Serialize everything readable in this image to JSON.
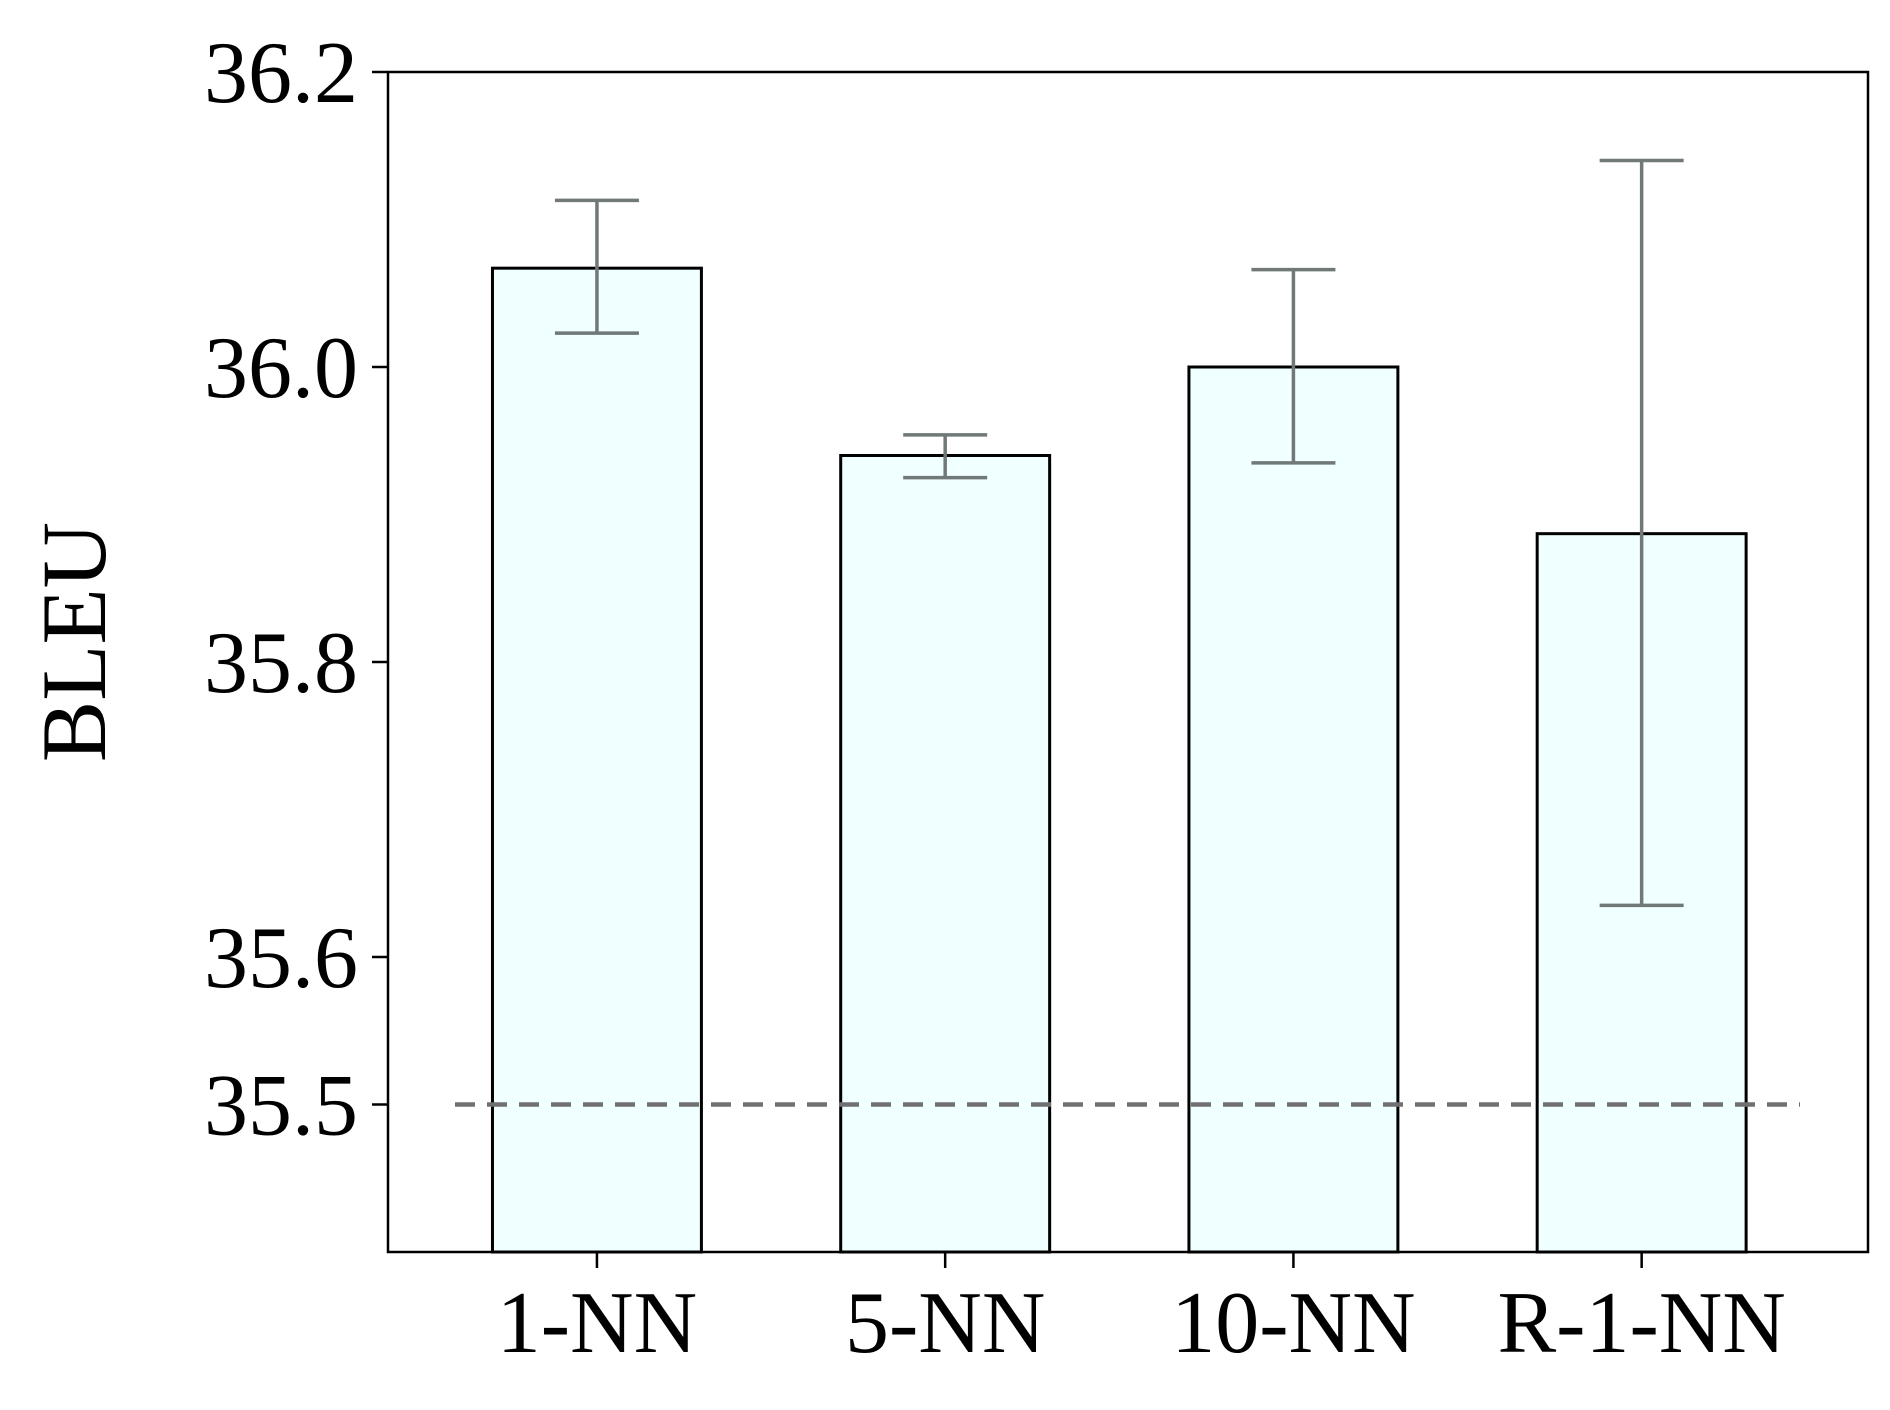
{
  "chart_data": {
    "type": "bar",
    "title": "",
    "xlabel": "",
    "ylabel": "BLEU",
    "ylim": [
      35.4,
      36.2
    ],
    "yticks": [
      35.5,
      35.6,
      35.8,
      36.0,
      36.2
    ],
    "ytick_labels": [
      "35.5",
      "35.6",
      "35.8",
      "36.0",
      "36.2"
    ],
    "categories": [
      "1-NN",
      "5-NN",
      "10-NN",
      "R-1-NN"
    ],
    "values": [
      36.067,
      35.94,
      36.0,
      35.887
    ],
    "error_low": [
      36.023,
      35.925,
      35.935,
      35.635
    ],
    "error_high": [
      36.113,
      35.954,
      36.066,
      36.14
    ],
    "baseline": 35.5,
    "grid": false,
    "colors": {
      "bar_fill": "#F0FFFF",
      "bar_edge": "#000000",
      "errorbar": "#707878",
      "baseline": "#707070"
    }
  }
}
